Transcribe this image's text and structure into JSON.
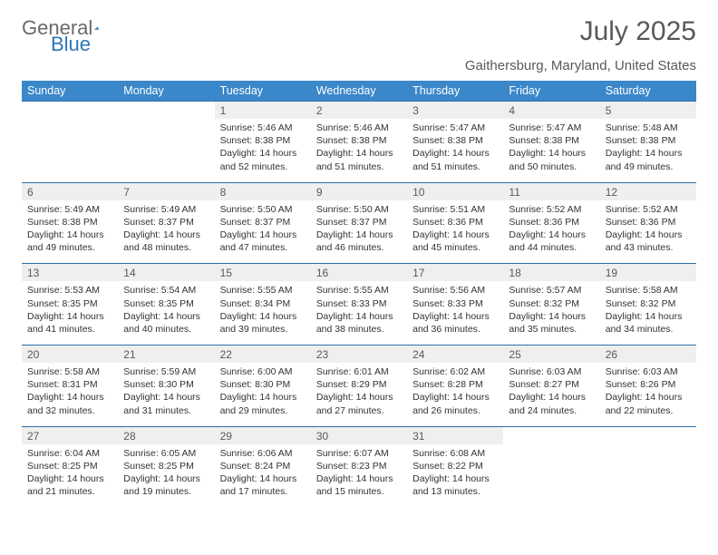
{
  "logo": {
    "part1": "General",
    "part2": "Blue"
  },
  "title": "July 2025",
  "subtitle": "Gaithersburg, Maryland, United States",
  "colors": {
    "header_bg": "#3a87c9",
    "header_text": "#ffffff",
    "daynum_bg": "#efefef",
    "border": "#2f6fa8",
    "title_color": "#595959",
    "body_text": "#333333"
  },
  "day_names": [
    "Sunday",
    "Monday",
    "Tuesday",
    "Wednesday",
    "Thursday",
    "Friday",
    "Saturday"
  ],
  "weeks": [
    [
      null,
      null,
      {
        "n": "1",
        "sr": "5:46 AM",
        "ss": "8:38 PM",
        "dl": "14 hours and 52 minutes."
      },
      {
        "n": "2",
        "sr": "5:46 AM",
        "ss": "8:38 PM",
        "dl": "14 hours and 51 minutes."
      },
      {
        "n": "3",
        "sr": "5:47 AM",
        "ss": "8:38 PM",
        "dl": "14 hours and 51 minutes."
      },
      {
        "n": "4",
        "sr": "5:47 AM",
        "ss": "8:38 PM",
        "dl": "14 hours and 50 minutes."
      },
      {
        "n": "5",
        "sr": "5:48 AM",
        "ss": "8:38 PM",
        "dl": "14 hours and 49 minutes."
      }
    ],
    [
      {
        "n": "6",
        "sr": "5:49 AM",
        "ss": "8:38 PM",
        "dl": "14 hours and 49 minutes."
      },
      {
        "n": "7",
        "sr": "5:49 AM",
        "ss": "8:37 PM",
        "dl": "14 hours and 48 minutes."
      },
      {
        "n": "8",
        "sr": "5:50 AM",
        "ss": "8:37 PM",
        "dl": "14 hours and 47 minutes."
      },
      {
        "n": "9",
        "sr": "5:50 AM",
        "ss": "8:37 PM",
        "dl": "14 hours and 46 minutes."
      },
      {
        "n": "10",
        "sr": "5:51 AM",
        "ss": "8:36 PM",
        "dl": "14 hours and 45 minutes."
      },
      {
        "n": "11",
        "sr": "5:52 AM",
        "ss": "8:36 PM",
        "dl": "14 hours and 44 minutes."
      },
      {
        "n": "12",
        "sr": "5:52 AM",
        "ss": "8:36 PM",
        "dl": "14 hours and 43 minutes."
      }
    ],
    [
      {
        "n": "13",
        "sr": "5:53 AM",
        "ss": "8:35 PM",
        "dl": "14 hours and 41 minutes."
      },
      {
        "n": "14",
        "sr": "5:54 AM",
        "ss": "8:35 PM",
        "dl": "14 hours and 40 minutes."
      },
      {
        "n": "15",
        "sr": "5:55 AM",
        "ss": "8:34 PM",
        "dl": "14 hours and 39 minutes."
      },
      {
        "n": "16",
        "sr": "5:55 AM",
        "ss": "8:33 PM",
        "dl": "14 hours and 38 minutes."
      },
      {
        "n": "17",
        "sr": "5:56 AM",
        "ss": "8:33 PM",
        "dl": "14 hours and 36 minutes."
      },
      {
        "n": "18",
        "sr": "5:57 AM",
        "ss": "8:32 PM",
        "dl": "14 hours and 35 minutes."
      },
      {
        "n": "19",
        "sr": "5:58 AM",
        "ss": "8:32 PM",
        "dl": "14 hours and 34 minutes."
      }
    ],
    [
      {
        "n": "20",
        "sr": "5:58 AM",
        "ss": "8:31 PM",
        "dl": "14 hours and 32 minutes."
      },
      {
        "n": "21",
        "sr": "5:59 AM",
        "ss": "8:30 PM",
        "dl": "14 hours and 31 minutes."
      },
      {
        "n": "22",
        "sr": "6:00 AM",
        "ss": "8:30 PM",
        "dl": "14 hours and 29 minutes."
      },
      {
        "n": "23",
        "sr": "6:01 AM",
        "ss": "8:29 PM",
        "dl": "14 hours and 27 minutes."
      },
      {
        "n": "24",
        "sr": "6:02 AM",
        "ss": "8:28 PM",
        "dl": "14 hours and 26 minutes."
      },
      {
        "n": "25",
        "sr": "6:03 AM",
        "ss": "8:27 PM",
        "dl": "14 hours and 24 minutes."
      },
      {
        "n": "26",
        "sr": "6:03 AM",
        "ss": "8:26 PM",
        "dl": "14 hours and 22 minutes."
      }
    ],
    [
      {
        "n": "27",
        "sr": "6:04 AM",
        "ss": "8:25 PM",
        "dl": "14 hours and 21 minutes."
      },
      {
        "n": "28",
        "sr": "6:05 AM",
        "ss": "8:25 PM",
        "dl": "14 hours and 19 minutes."
      },
      {
        "n": "29",
        "sr": "6:06 AM",
        "ss": "8:24 PM",
        "dl": "14 hours and 17 minutes."
      },
      {
        "n": "30",
        "sr": "6:07 AM",
        "ss": "8:23 PM",
        "dl": "14 hours and 15 minutes."
      },
      {
        "n": "31",
        "sr": "6:08 AM",
        "ss": "8:22 PM",
        "dl": "14 hours and 13 minutes."
      },
      null,
      null
    ]
  ],
  "labels": {
    "sunrise": "Sunrise: ",
    "sunset": "Sunset: ",
    "daylight": "Daylight: "
  }
}
